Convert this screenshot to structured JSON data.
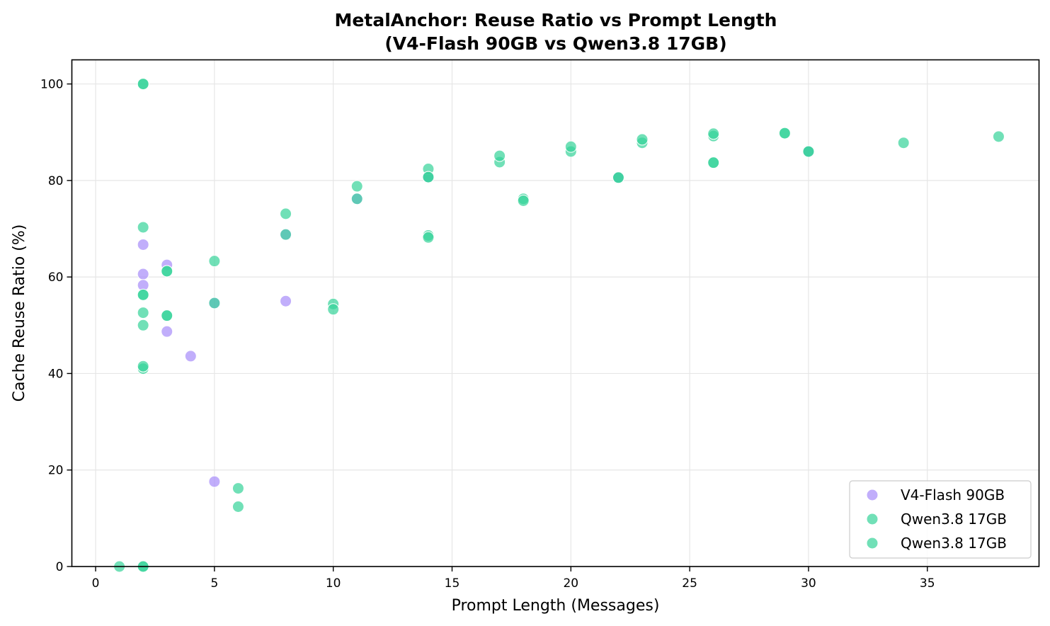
{
  "chart_data": {
    "type": "scatter",
    "title": "MetalAnchor: Reuse Ratio vs Prompt Length",
    "subtitle": "(V4-Flash 90GB vs Qwen3.8 17GB)",
    "xlabel": "Prompt Length (Messages)",
    "ylabel": "Cache Reuse Ratio (%)",
    "xlim": [
      -1,
      39.7
    ],
    "ylim": [
      0,
      105
    ],
    "xticks": [
      0,
      5,
      10,
      15,
      20,
      25,
      30,
      35
    ],
    "yticks": [
      0,
      20,
      40,
      60,
      80,
      100
    ],
    "grid": true,
    "legend_position": "bottom-right",
    "series": [
      {
        "name": "V4-Flash 90GB",
        "color": "#a78bfa",
        "points": [
          [
            2,
            66.7
          ],
          [
            2,
            60.6
          ],
          [
            2,
            58.3
          ],
          [
            3,
            62.5
          ],
          [
            3,
            48.7
          ],
          [
            4,
            43.6
          ],
          [
            5,
            54.6
          ],
          [
            5,
            17.6
          ],
          [
            8,
            55.0
          ],
          [
            8,
            68.8
          ],
          [
            11,
            76.2
          ],
          [
            14,
            80.7
          ],
          [
            22,
            80.6
          ],
          [
            30,
            86.0
          ]
        ]
      },
      {
        "name": "Qwen3.8 17GB",
        "color": "#34d399",
        "points": [
          [
            1,
            0
          ],
          [
            2,
            0
          ],
          [
            2,
            100
          ],
          [
            2,
            70.3
          ],
          [
            2,
            56.3
          ],
          [
            2,
            52.6
          ],
          [
            2,
            50.0
          ],
          [
            2,
            41.0
          ],
          [
            3,
            61.2
          ],
          [
            3,
            52.0
          ],
          [
            5,
            63.3
          ],
          [
            5,
            54.6
          ],
          [
            6,
            16.2
          ],
          [
            6,
            12.4
          ],
          [
            8,
            73.1
          ],
          [
            8,
            68.8
          ],
          [
            10,
            54.4
          ],
          [
            10,
            53.3
          ],
          [
            11,
            78.8
          ],
          [
            11,
            76.2
          ],
          [
            14,
            82.4
          ],
          [
            14,
            80.7
          ],
          [
            14,
            68.6
          ],
          [
            14,
            68.2
          ],
          [
            17,
            83.8
          ],
          [
            17,
            85.1
          ],
          [
            18,
            76.2
          ],
          [
            18,
            75.8
          ],
          [
            20,
            86.0
          ],
          [
            20,
            87.0
          ],
          [
            22,
            80.6
          ],
          [
            23,
            87.8
          ],
          [
            23,
            88.5
          ],
          [
            26,
            89.2
          ],
          [
            26,
            89.7
          ],
          [
            26,
            83.7
          ],
          [
            29,
            89.8
          ],
          [
            30,
            86.0
          ],
          [
            34,
            87.8
          ],
          [
            38,
            89.1
          ]
        ]
      },
      {
        "name": "Qwen3.8 17GB",
        "color": "#34d399",
        "points": [
          [
            2,
            100
          ],
          [
            2,
            56.3
          ],
          [
            2,
            41.5
          ],
          [
            2,
            0
          ],
          [
            3,
            61.2
          ],
          [
            3,
            52.0
          ],
          [
            14,
            80.7
          ],
          [
            22,
            80.6
          ],
          [
            26,
            83.7
          ],
          [
            29,
            89.8
          ],
          [
            30,
            86.0
          ]
        ]
      }
    ]
  }
}
